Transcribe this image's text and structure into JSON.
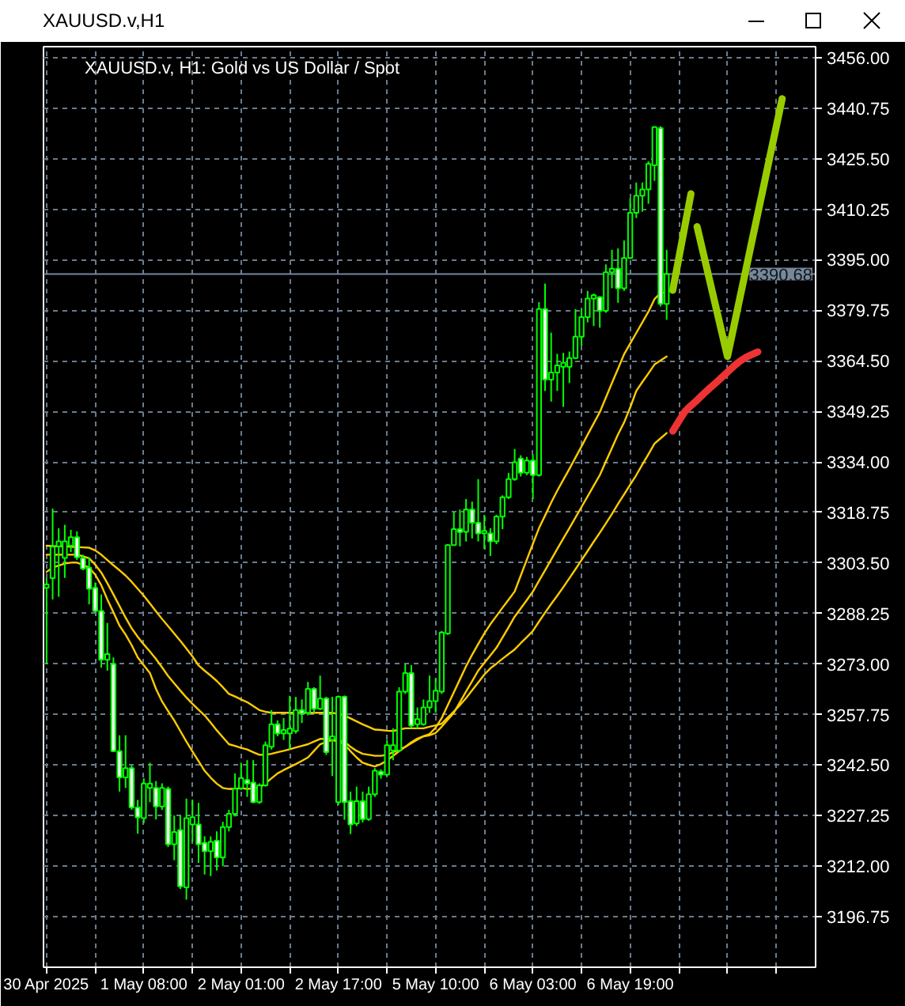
{
  "chart_data": {
    "type": "candlestick",
    "title": "XAUUSD.v,H1",
    "subtitle": "XAUUSD.v, H1: Gold vs US Dollar / Spot",
    "categories": [
      "30 Apr 2025",
      null,
      null,
      null,
      null,
      null,
      null,
      null,
      null,
      null,
      null,
      null,
      null,
      null,
      null,
      null,
      "1 May 08:00",
      null,
      null,
      null,
      null,
      null,
      null,
      null,
      null,
      null,
      null,
      null,
      null,
      null,
      null,
      null,
      "2 May 01:00",
      null,
      null,
      null,
      null,
      null,
      null,
      null,
      null,
      null,
      null,
      null,
      null,
      null,
      null,
      null,
      "2 May 17:00",
      null,
      null,
      null,
      null,
      null,
      null,
      null,
      null,
      null,
      null,
      null,
      null,
      null,
      null,
      null,
      "5 May 10:00",
      null,
      null,
      null,
      null,
      null,
      null,
      null,
      null,
      null,
      null,
      null,
      null,
      null,
      null,
      null,
      "6 May 03:00",
      null,
      null,
      null,
      null,
      null,
      null,
      null,
      null,
      null,
      null,
      null,
      null,
      null,
      null,
      null,
      "6 May 19:00",
      null,
      null,
      null,
      null,
      null,
      null,
      null,
      null,
      null,
      null,
      null,
      null,
      null,
      null,
      null,
      null,
      null,
      null,
      null,
      null,
      null,
      null,
      null,
      null,
      null,
      null,
      null,
      null,
      null,
      null
    ],
    "ylim": [
      3181.5,
      3459.3
    ],
    "yticks": [
      3196.75,
      {
        "value": 3212,
        "label": "3212.00"
      },
      3227.25,
      {
        "value": 3242.5,
        "label": "3242.50"
      },
      3257.75,
      {
        "value": 3273,
        "label": "3273.00"
      },
      3288.25,
      {
        "value": 3303.5,
        "label": "3303.50"
      },
      3318.75,
      {
        "value": 3334,
        "label": "3334.00"
      },
      3349.25,
      {
        "value": 3364.5,
        "label": "3364.50"
      },
      3379.75,
      {
        "value": 3395,
        "label": "3395.00"
      },
      3410.25,
      {
        "value": 3425.5,
        "label": "3425.50"
      },
      3440.75,
      {
        "value": 3456,
        "label": "3456.00"
      }
    ],
    "grid": true,
    "ref_lines": [
      {
        "axis": "y",
        "value": 3390.68,
        "label": "3390.68",
        "color": "#778899"
      }
    ],
    "series": [
      {
        "type": "line",
        "color": "#ffcc00",
        "values": [
          3308.7,
          3308.6,
          3308.5,
          3308.5,
          3308.4,
          3308.3,
          3308.2,
          3308.1,
          3307.3,
          3306.0,
          3304.4,
          3302.8,
          3301.3,
          3299.7,
          3297.8,
          3295.7,
          3293.6,
          3291.3,
          3288.9,
          3286.6,
          3284.4,
          3282.2,
          3280.0,
          3277.7,
          3275.3,
          3272.6,
          3271.0,
          3269.5,
          3267.9,
          3266.0,
          3264.0,
          3263.2,
          3262.3,
          3261.5,
          3260.3,
          3259.1,
          3258.6,
          3258.3,
          3258.3,
          3258.3,
          3258.3,
          3258.3,
          3258.3,
          3258.3,
          3258.3,
          3258.3,
          3258.3,
          3258.3,
          3257.9,
          3257.5,
          3256.6,
          3255.7,
          3254.8,
          3254.0,
          3253.2,
          3253.1,
          3252.9,
          3252.8,
          3253.2,
          3253.6,
          3253.6,
          3253.6,
          3253.6,
          3254.1,
          3254.5,
          3255.0,
          3256.9,
          3258.7,
          3260.6,
          3262.7,
          3265.1,
          3267.4,
          3269.8,
          3271.7,
          3273.1,
          3274.6,
          3276.0,
          3277.4,
          3279.3,
          3281.1,
          3283.0,
          3285.8,
          3288.5,
          3291.1,
          3293.6,
          3296.2,
          3298.9,
          3301.6,
          3304.4,
          3307.1,
          3309.9,
          3312.6,
          3315.4,
          3318.3,
          3321.3,
          3324.2,
          3327.1,
          3330.0,
          3333.2,
          3336.3,
          3339.5,
          3341.1,
          3342.7,
          null,
          null,
          null,
          null,
          null,
          null,
          null,
          null,
          null,
          null,
          null,
          null,
          null,
          null,
          null,
          null,
          null,
          null,
          null,
          null,
          null,
          null,
          null,
          null
        ]
      },
      {
        "type": "line",
        "color": "#ffcc00",
        "values": [
          3306.0,
          3306.0,
          3306.0,
          3306.0,
          3306.0,
          3306.0,
          3305.5,
          3304.9,
          3303.0,
          3300.6,
          3297.4,
          3294.0,
          3290.5,
          3287.0,
          3283.8,
          3281.2,
          3278.9,
          3276.8,
          3274.5,
          3272.0,
          3269.4,
          3267.2,
          3265.0,
          3262.9,
          3261.0,
          3259.2,
          3257.5,
          3255.3,
          3253.0,
          3250.9,
          3248.8,
          3248.3,
          3247.7,
          3247.2,
          3246.4,
          3245.6,
          3245.6,
          3245.9,
          3246.4,
          3246.8,
          3247.3,
          3247.8,
          3248.3,
          3248.8,
          3249.6,
          3250.4,
          3250.4,
          3250.4,
          3250.0,
          3249.6,
          3248.0,
          3246.8,
          3245.9,
          3245.6,
          3245.3,
          3245.3,
          3245.6,
          3246.4,
          3247.2,
          3248.0,
          3249.4,
          3250.5,
          3251.2,
          3251.5,
          3252.2,
          3254.1,
          3256.2,
          3258.3,
          3261.5,
          3264.7,
          3267.8,
          3271.0,
          3273.3,
          3275.6,
          3277.9,
          3281.0,
          3284.1,
          3287.3,
          3289.8,
          3292.3,
          3294.9,
          3298.1,
          3301.3,
          3304.5,
          3307.7,
          3310.9,
          3314.0,
          3317.2,
          3320.4,
          3323.6,
          3326.8,
          3330.0,
          3334.1,
          3338.2,
          3342.3,
          3345.9,
          3350.4,
          3355.4,
          3358.1,
          3360.7,
          3363.4,
          3364.6,
          3365.8,
          null,
          null,
          null,
          null,
          null,
          null,
          null,
          null,
          null,
          null,
          null,
          null,
          null,
          null,
          null,
          null,
          null,
          null,
          null,
          null,
          null,
          null,
          null,
          null
        ]
      },
      {
        "type": "line",
        "color": "#ffcc00",
        "values": [
          3300.8,
          3302.1,
          3302.7,
          3303.3,
          3303.6,
          3303.6,
          3302.9,
          3302.1,
          3300.0,
          3296.8,
          3292.5,
          3288.6,
          3284.6,
          3281.9,
          3278.7,
          3275.0,
          3272.6,
          3270.3,
          3265.5,
          3261.7,
          3258.8,
          3256.0,
          3252.8,
          3249.6,
          3246.6,
          3243.7,
          3240.8,
          3238.7,
          3236.9,
          3235.6,
          3235.3,
          3235.3,
          3235.6,
          3235.3,
          3235.5,
          3235.7,
          3237.0,
          3238.5,
          3240.0,
          3241.0,
          3241.9,
          3242.8,
          3243.8,
          3244.8,
          3246.8,
          3248.8,
          3249.5,
          3250.1,
          3249.5,
          3248.8,
          3246.7,
          3244.8,
          3243.2,
          3242.6,
          3242.1,
          3242.8,
          3243.9,
          3245.3,
          3246.7,
          3248.0,
          3249.1,
          3250.2,
          3251.2,
          3251.9,
          3253.8,
          3256.7,
          3260.6,
          3264.5,
          3268.4,
          3272.3,
          3275.8,
          3279.0,
          3282.2,
          3285.0,
          3287.5,
          3290.0,
          3292.4,
          3294.9,
          3299.7,
          3304.5,
          3309.3,
          3314.0,
          3317.8,
          3321.7,
          3325.3,
          3328.6,
          3331.9,
          3335.3,
          3338.7,
          3342.2,
          3345.6,
          3349.0,
          3353.4,
          3357.8,
          3362.1,
          3366.5,
          3369.7,
          3372.9,
          3376.1,
          3379.3,
          3383.1,
          3385.0,
          3385.2,
          null,
          null,
          null,
          null,
          null,
          null,
          null,
          null,
          null,
          null,
          null,
          null,
          null,
          null,
          null,
          null,
          null,
          null,
          null,
          null,
          null,
          null,
          null,
          null
        ]
      },
      {
        "color": "#00ff00",
        "colors": [
          "#000000",
          "#000000",
          "#000000",
          "#000000",
          "#000000",
          "#ffffff",
          "#ffffff",
          "#ffffff",
          "#ffffff",
          "#ffffff",
          "#000000",
          "#ffffff",
          "#ffffff",
          "#000000",
          "#ffffff",
          "#ffffff",
          "#000000",
          "#000000",
          "#ffffff",
          "#000000",
          "#ffffff",
          "#000000",
          "#ffffff",
          "#000000",
          "#000000",
          "#ffffff",
          "#ffffff",
          "#000000",
          "#ffffff",
          "#000000",
          "#000000",
          "#000000",
          "#000000",
          "#ffffff",
          "#ffffff",
          "#000000",
          "#000000",
          "#000000",
          "#ffffff",
          "#000000",
          "#000000",
          "#000000",
          "#ffffff",
          "#000000",
          "#ffffff",
          "#000000",
          "#ffffff",
          "#000000",
          "#000000",
          "#ffffff",
          "#ffffff",
          "#000000",
          "#ffffff",
          "#000000",
          "#000000",
          "#ffffff",
          "#000000",
          "#000000",
          "#000000",
          "#000000",
          "#ffffff",
          "#000000",
          "#000000",
          "#000000",
          "#000000",
          "#000000",
          "#000000",
          "#000000",
          "#ffffff",
          "#000000",
          "#ffffff",
          "#ffffff",
          "#000000",
          "#ffffff",
          "#000000",
          "#000000",
          "#000000",
          "#000000",
          "#ffffff",
          "#000000",
          "#ffffff",
          "#000000",
          "#ffffff",
          "#000000",
          "#000000",
          "#000000",
          "#000000",
          "#000000",
          "#000000",
          "#000000",
          "#000000",
          "#ffffff",
          "#000000",
          "#000000",
          "#ffffff",
          "#000000",
          "#000000",
          "#000000",
          "#000000",
          "#000000",
          "#000000",
          "#ffffff",
          "#000000",
          null,
          null,
          null,
          null,
          null,
          null,
          null,
          null,
          null,
          null,
          null,
          null,
          null,
          null,
          null,
          null,
          null,
          null,
          null,
          null,
          null,
          null,
          null,
          null
        ],
        "ohlc": [
          [
            3296,
            3299,
            3273,
            3297
          ],
          [
            3298.9,
            3319.9,
            3292.5,
            3308.4
          ],
          [
            3308.5,
            3314,
            3293.3,
            3310
          ],
          [
            3305,
            3315,
            3299,
            3310
          ],
          [
            3308.7,
            3313.5,
            3306.8,
            3311.3
          ],
          [
            3311.3,
            3313,
            3304.4,
            3305.2
          ],
          [
            3305,
            3306,
            3301.3,
            3301.8
          ],
          [
            3302.1,
            3305.2,
            3291,
            3295.7
          ],
          [
            3296,
            3297.6,
            3288.5,
            3289
          ],
          [
            3289,
            3294,
            3271.9,
            3274.3
          ],
          [
            3274.3,
            3285.4,
            3271,
            3276
          ],
          [
            3273,
            3275,
            3246.4,
            3246.7
          ],
          [
            3246.7,
            3251.5,
            3234.5,
            3238.8
          ],
          [
            3238.8,
            3251.5,
            3235.6,
            3241.6
          ],
          [
            3241.6,
            3242.4,
            3229,
            3229.7
          ],
          [
            3229.7,
            3232,
            3221.8,
            3226.7
          ],
          [
            3226.5,
            3238.5,
            3225,
            3236.9
          ],
          [
            3235.6,
            3243.2,
            3231.3,
            3236.9
          ],
          [
            3235.6,
            3237.7,
            3226.1,
            3230
          ],
          [
            3230,
            3237,
            3229,
            3235.6
          ],
          [
            3235.3,
            3236,
            3217.8,
            3218.6
          ],
          [
            3218.6,
            3227.3,
            3213.8,
            3222.3
          ],
          [
            3222.9,
            3227.3,
            3205.1,
            3205.9
          ],
          [
            3205.6,
            3232.4,
            3201.9,
            3226.5
          ],
          [
            3224.6,
            3232.1,
            3219.4,
            3226.8
          ],
          [
            3224.6,
            3231.1,
            3213,
            3218.6
          ],
          [
            3219,
            3221,
            3209.5,
            3216.5
          ],
          [
            3216.5,
            3221,
            3209,
            3219.3
          ],
          [
            3219.7,
            3222.5,
            3210.7,
            3214.6
          ],
          [
            3214.6,
            3225.4,
            3212,
            3223.8
          ],
          [
            3223.8,
            3229,
            3222.5,
            3227.8
          ],
          [
            3227.8,
            3240,
            3227,
            3235.4
          ],
          [
            3235.5,
            3243.2,
            3235,
            3238.6
          ],
          [
            3238,
            3244,
            3232.9,
            3236.9
          ],
          [
            3237.2,
            3244,
            3231,
            3231.3
          ],
          [
            3231.3,
            3237,
            3230.8,
            3236.4
          ],
          [
            3236.4,
            3249.6,
            3236,
            3248.5
          ],
          [
            3248,
            3259.1,
            3247.2,
            3254.8
          ],
          [
            3254.8,
            3256,
            3251.2,
            3252
          ],
          [
            3252,
            3256.7,
            3250.1,
            3253.1
          ],
          [
            3252,
            3263.4,
            3247.2,
            3253.5
          ],
          [
            3252.8,
            3263.1,
            3252,
            3259.1
          ],
          [
            3259.1,
            3262.3,
            3255.2,
            3258
          ],
          [
            3258.3,
            3267.6,
            3257.5,
            3265.5
          ],
          [
            3265.5,
            3266,
            3258.3,
            3259.5
          ],
          [
            3259.5,
            3269.5,
            3259.1,
            3262.6
          ],
          [
            3262.6,
            3263.1,
            3245.6,
            3246.4
          ],
          [
            3250.1,
            3263.1,
            3239.2,
            3251.2
          ],
          [
            3231.3,
            3263.5,
            3230.5,
            3263.1
          ],
          [
            3263.1,
            3263.5,
            3226,
            3231.3
          ],
          [
            3231.6,
            3234.5,
            3221.7,
            3224.6
          ],
          [
            3224.9,
            3236,
            3224.1,
            3231.6
          ],
          [
            3231.6,
            3234.5,
            3225.2,
            3226.2
          ],
          [
            3226.2,
            3236,
            3225.7,
            3233.7
          ],
          [
            3233.7,
            3241.6,
            3232.9,
            3240.8
          ],
          [
            3240.5,
            3241.2,
            3238.4,
            3239.6
          ],
          [
            3239.6,
            3250.1,
            3239.2,
            3248.5
          ],
          [
            3246.9,
            3253.6,
            3244,
            3248.5
          ],
          [
            3246.9,
            3266,
            3246.4,
            3264.7
          ],
          [
            3264.7,
            3273,
            3264,
            3270.3
          ],
          [
            3270.3,
            3272.7,
            3253.6,
            3254.4
          ],
          [
            3254.8,
            3259.9,
            3253.6,
            3256.4
          ],
          [
            3254.8,
            3262.3,
            3254.4,
            3259.9
          ],
          [
            3259.9,
            3269.5,
            3258.3,
            3261.8
          ],
          [
            3261.8,
            3268.7,
            3258.3,
            3265
          ],
          [
            3264.7,
            3283,
            3264,
            3282.5
          ],
          [
            3282.2,
            3309.2,
            3281.8,
            3308.9
          ],
          [
            3308.9,
            3318.8,
            3308.9,
            3313.7
          ],
          [
            3313.7,
            3319.6,
            3308.5,
            3312.8
          ],
          [
            3312.9,
            3322.8,
            3310,
            3319.6
          ],
          [
            3319.6,
            3322,
            3310.9,
            3315.6
          ],
          [
            3315.6,
            3328.8,
            3310,
            3312.4
          ],
          [
            3312.4,
            3318,
            3307.7,
            3313.2
          ],
          [
            3312.4,
            3314,
            3305.6,
            3310
          ],
          [
            3310,
            3318,
            3309.2,
            3317.5
          ],
          [
            3317.5,
            3323.9,
            3313.7,
            3323.3
          ],
          [
            3323.3,
            3330.7,
            3322.8,
            3328.8
          ],
          [
            3328.8,
            3337.9,
            3328.3,
            3333.9
          ],
          [
            3335,
            3336,
            3329.6,
            3330.7
          ],
          [
            3330.7,
            3335.5,
            3330,
            3334.4
          ],
          [
            3334.4,
            3336.3,
            3322.8,
            3330
          ],
          [
            3330,
            3382.2,
            3329.6,
            3380.1
          ],
          [
            3380.1,
            3387.8,
            3355.4,
            3358.8
          ],
          [
            3358.8,
            3373,
            3352.2,
            3361
          ],
          [
            3361,
            3366.6,
            3355.4,
            3363.1
          ],
          [
            3362.7,
            3366.9,
            3350.6,
            3363.9
          ],
          [
            3362.7,
            3367.3,
            3357.8,
            3365.3
          ],
          [
            3365.3,
            3380.1,
            3365,
            3371.8
          ],
          [
            3371.8,
            3380.1,
            3369,
            3377.7
          ],
          [
            3377.7,
            3385.6,
            3376.1,
            3383.3
          ],
          [
            3383.3,
            3384.8,
            3375,
            3384.3
          ],
          [
            3383.7,
            3384,
            3374.5,
            3379.6
          ],
          [
            3379.6,
            3393.6,
            3379,
            3391.2
          ],
          [
            3391.2,
            3398,
            3386.4,
            3392.3
          ],
          [
            3392.3,
            3398.4,
            3382,
            3386.4
          ],
          [
            3386.4,
            3400.8,
            3385.6,
            3395.5
          ],
          [
            3395.5,
            3413.5,
            3395.2,
            3409.2
          ],
          [
            3409.2,
            3418.3,
            3407.6,
            3414.3
          ],
          [
            3414.3,
            3418.3,
            3409.5,
            3416.2
          ],
          [
            3416.2,
            3424.7,
            3411.9,
            3423.9
          ],
          [
            3423.5,
            3435.3,
            3418.8,
            3435
          ],
          [
            3434.7,
            3435.3,
            3380.9,
            3381.7
          ],
          [
            3381.7,
            3398,
            3376.9,
            3390.68
          ],
          null,
          null,
          null,
          null,
          null,
          null,
          null,
          null,
          null,
          null,
          null,
          null,
          null,
          null,
          null,
          null,
          null,
          null,
          null,
          null,
          null,
          null,
          null,
          null
        ]
      },
      {
        "type": "line",
        "color": "#99cc00",
        "values": [
          null,
          null,
          null,
          null,
          null,
          null,
          null,
          null,
          null,
          null,
          null,
          null,
          null,
          null,
          null,
          null,
          null,
          null,
          null,
          null,
          null,
          null,
          null,
          null,
          null,
          null,
          null,
          null,
          null,
          null,
          null,
          null,
          null,
          null,
          null,
          null,
          null,
          null,
          null,
          null,
          null,
          null,
          null,
          null,
          null,
          null,
          null,
          null,
          null,
          null,
          null,
          null,
          null,
          null,
          null,
          null,
          null,
          null,
          null,
          null,
          null,
          null,
          null,
          null,
          null,
          null,
          null,
          null,
          null,
          null,
          null,
          null,
          null,
          null,
          null,
          null,
          null,
          null,
          null,
          null,
          null,
          null,
          null,
          null,
          null,
          null,
          null,
          null,
          null,
          null,
          null,
          null,
          null,
          null,
          null,
          null,
          null,
          null,
          null,
          null,
          null,
          null,
          null,
          3385.8,
          3395.5,
          3405.2,
          3414.9,
          null,
          null,
          null,
          null,
          null,
          null,
          null,
          null,
          null,
          null,
          null,
          null,
          null,
          null,
          null,
          null,
          null,
          null,
          null,
          null
        ]
      },
      {
        "type": "line",
        "color": "#99cc00",
        "values": [
          null,
          null,
          null,
          null,
          null,
          null,
          null,
          null,
          null,
          null,
          null,
          null,
          null,
          null,
          null,
          null,
          null,
          null,
          null,
          null,
          null,
          null,
          null,
          null,
          null,
          null,
          null,
          null,
          null,
          null,
          null,
          null,
          null,
          null,
          null,
          null,
          null,
          null,
          null,
          null,
          null,
          null,
          null,
          null,
          null,
          null,
          null,
          null,
          null,
          null,
          null,
          null,
          null,
          null,
          null,
          null,
          null,
          null,
          null,
          null,
          null,
          null,
          null,
          null,
          null,
          null,
          null,
          null,
          null,
          null,
          null,
          null,
          null,
          null,
          null,
          null,
          null,
          null,
          null,
          null,
          null,
          null,
          null,
          null,
          null,
          null,
          null,
          null,
          null,
          null,
          null,
          null,
          null,
          null,
          null,
          null,
          null,
          null,
          null,
          null,
          null,
          null,
          null,
          null,
          null,
          null,
          null,
          3405.0,
          3397.2,
          3389.3,
          3381.5,
          3373.6,
          3365.8,
          3374.4,
          3383.1,
          3391.7,
          3400.4,
          3409.0,
          3417.6,
          3426.3,
          3434.9,
          3443.6,
          null,
          null,
          null,
          null,
          null
        ]
      },
      {
        "type": "line",
        "color": "#ee3333",
        "values": [
          null,
          null,
          null,
          null,
          null,
          null,
          null,
          null,
          null,
          null,
          null,
          null,
          null,
          null,
          null,
          null,
          null,
          null,
          null,
          null,
          null,
          null,
          null,
          null,
          null,
          null,
          null,
          null,
          null,
          null,
          null,
          null,
          null,
          null,
          null,
          null,
          null,
          null,
          null,
          null,
          null,
          null,
          null,
          null,
          null,
          null,
          null,
          null,
          null,
          null,
          null,
          null,
          null,
          null,
          null,
          null,
          null,
          null,
          null,
          null,
          null,
          null,
          null,
          null,
          null,
          null,
          null,
          null,
          null,
          null,
          null,
          null,
          null,
          null,
          null,
          null,
          null,
          null,
          null,
          null,
          null,
          null,
          null,
          null,
          null,
          null,
          null,
          null,
          null,
          null,
          null,
          null,
          null,
          null,
          null,
          null,
          null,
          null,
          null,
          null,
          null,
          null,
          null,
          3343.3,
          3346.3,
          3349.2,
          3351.0,
          3352.6,
          3354.4,
          3356.1,
          3357.7,
          3359.4,
          3361.1,
          3362.8,
          3364.3,
          3365.5,
          3366.4,
          3367.2,
          null,
          null,
          null,
          null,
          null,
          null,
          null,
          null,
          null
        ]
      }
    ]
  }
}
